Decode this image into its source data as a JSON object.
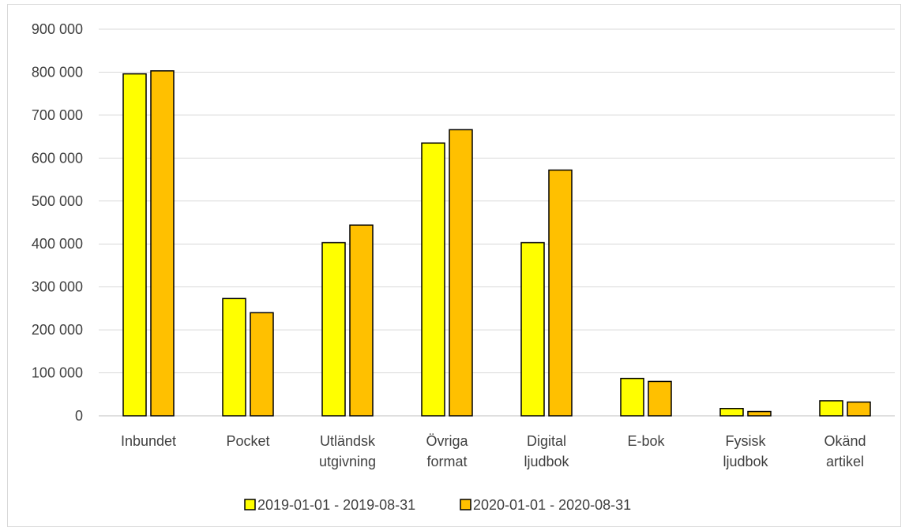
{
  "chart_data": {
    "type": "bar",
    "title": "",
    "xlabel": "",
    "ylabel": "",
    "ylim": [
      0,
      900000
    ],
    "yticks": [
      0,
      100000,
      200000,
      300000,
      400000,
      500000,
      600000,
      700000,
      800000,
      900000
    ],
    "ytick_labels": [
      "0",
      "100 000",
      "200 000",
      "300 000",
      "400 000",
      "500 000",
      "600 000",
      "700 000",
      "800 000",
      "900 000"
    ],
    "grid": true,
    "legend_position": "bottom",
    "categories": [
      [
        "Inbundet"
      ],
      [
        "Pocket"
      ],
      [
        "Utländsk",
        "utgivning"
      ],
      [
        "Övriga",
        "format"
      ],
      [
        "Digital",
        "ljudbok"
      ],
      [
        "E-bok"
      ],
      [
        "Fysisk",
        "ljudbok"
      ],
      [
        "Okänd",
        "artikel"
      ]
    ],
    "series": [
      {
        "name": "2019-01-01 - 2019-08-31",
        "color": "#FFFF00",
        "values": [
          796000,
          273000,
          403000,
          635000,
          403000,
          87000,
          17000,
          35000
        ]
      },
      {
        "name": "2020-01-01 - 2020-08-31",
        "color": "#FFC000",
        "values": [
          803000,
          240000,
          444000,
          666000,
          572000,
          80000,
          10000,
          32000
        ]
      }
    ]
  }
}
